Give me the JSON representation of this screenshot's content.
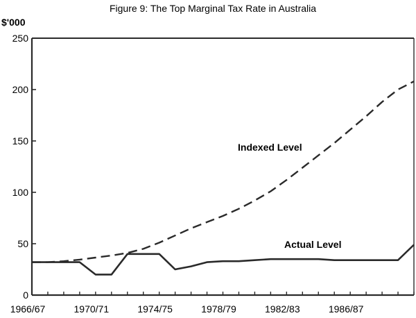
{
  "chart_data": {
    "type": "line",
    "title": "Figure 9: The Top Marginal Tax Rate in Australia",
    "y_unit_label": "$'000",
    "ylim": [
      0,
      250
    ],
    "y_ticks": [
      0,
      50,
      100,
      150,
      200,
      250
    ],
    "x_tick_labels": [
      "1966/67",
      "1970/71",
      "1974/75",
      "1978/79",
      "1982/83",
      "1986/87"
    ],
    "x": [
      "1966/67",
      "1967/68",
      "1968/69",
      "1969/70",
      "1970/71",
      "1971/72",
      "1972/73",
      "1973/74",
      "1974/75",
      "1975/76",
      "1976/77",
      "1977/78",
      "1978/79",
      "1979/80",
      "1980/81",
      "1981/82",
      "1982/83",
      "1983/84",
      "1984/85",
      "1985/86",
      "1986/87",
      "1987/88",
      "1988/89",
      "1989/90",
      "1990/91"
    ],
    "grid": false,
    "series": [
      {
        "name": "Indexed Level",
        "style": "dashed",
        "color": "#2a2a2a",
        "values": [
          32,
          32,
          33,
          34.5,
          36.5,
          38.5,
          41,
          45,
          51,
          58,
          65,
          71,
          77,
          84,
          92,
          101,
          112,
          124,
          136,
          148,
          161,
          174,
          188,
          200,
          208
        ]
      },
      {
        "name": "Actual Level",
        "style": "solid",
        "color": "#2a2a2a",
        "values": [
          32,
          32,
          32,
          32,
          20,
          20,
          40,
          40,
          40,
          25,
          28,
          32,
          33,
          33,
          34,
          35,
          35,
          35,
          35,
          34,
          34,
          34,
          34,
          34,
          49
        ]
      }
    ]
  }
}
